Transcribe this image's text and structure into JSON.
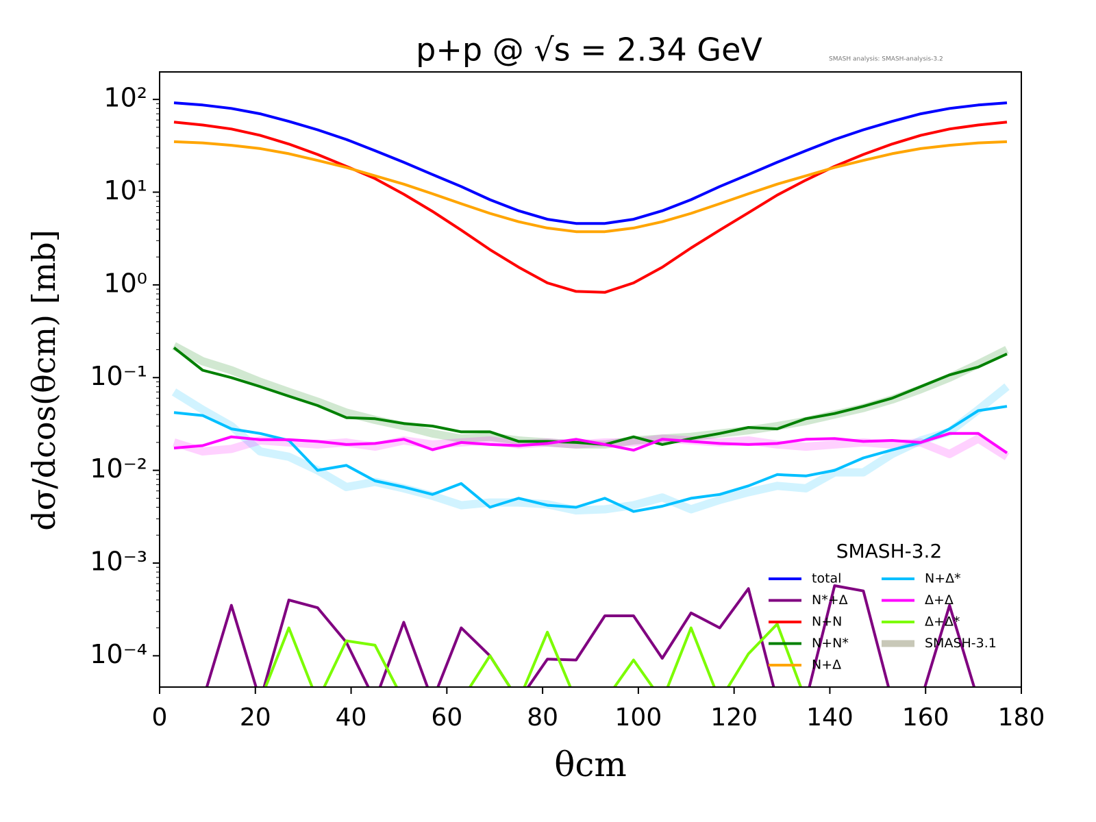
{
  "chart_data": {
    "type": "line",
    "title": "p+p @ √s = 2.34 GeV",
    "annotation": "SMASH analysis: SMASH-analysis-3.2",
    "xlabel": "θcm",
    "ylabel": "dσ/dcos(θcm) [mb]",
    "yscale": "log",
    "xlim": [
      0,
      180
    ],
    "xticks": [
      0,
      20,
      40,
      60,
      80,
      100,
      120,
      140,
      160,
      180
    ],
    "ylim": [
      4.6e-05,
      198
    ],
    "yticks": [
      {
        "value": 0.0001,
        "label": "10⁻⁴"
      },
      {
        "value": 0.001,
        "label": "10⁻³"
      },
      {
        "value": 0.01,
        "label": "10⁻²"
      },
      {
        "value": 0.1,
        "label": "10⁻¹"
      },
      {
        "value": 1,
        "label": "10⁰"
      },
      {
        "value": 10,
        "label": "10¹"
      },
      {
        "value": 100,
        "label": "10²"
      }
    ],
    "legend_title": "SMASH-3.2",
    "legend": "lower right",
    "x": [
      3,
      9,
      15,
      21,
      27,
      33,
      39,
      45,
      51,
      57,
      63,
      69,
      75,
      81,
      87,
      93,
      99,
      105,
      111,
      117,
      123,
      129,
      135,
      141,
      147,
      153,
      159,
      165,
      171,
      177
    ],
    "series": [
      {
        "name": "total",
        "color": "#0000ff",
        "values": [
          92,
          87,
          80,
          70,
          58,
          47,
          37,
          28,
          21,
          15.5,
          11.5,
          8.3,
          6.3,
          5.1,
          4.6,
          4.6,
          5.1,
          6.3,
          8.3,
          11.5,
          15.5,
          21,
          28,
          37,
          47,
          58,
          70,
          80,
          87,
          92
        ]
      },
      {
        "name": "N*+Δ",
        "color": "#800080",
        "values": [
          0,
          0,
          0.00035,
          0,
          0.0004,
          0.00033,
          0.00014,
          0,
          0.00023,
          0,
          0.0002,
          0.0001,
          0,
          9.2e-05,
          9e-05,
          0.00027,
          0.00027,
          9.4e-05,
          0.00029,
          0.0002,
          0.00053,
          0,
          0,
          0.00057,
          0.0005,
          0,
          0,
          0.00035,
          0,
          0
        ]
      },
      {
        "name": "N+N",
        "color": "#ff0000",
        "values": [
          57,
          53,
          48,
          41,
          33,
          25.5,
          19,
          14,
          9.5,
          6.2,
          3.9,
          2.4,
          1.55,
          1.05,
          0.85,
          0.83,
          1.05,
          1.55,
          2.5,
          3.9,
          6,
          9.3,
          13.5,
          19,
          25.5,
          33,
          41,
          48,
          53,
          57
        ]
      },
      {
        "name": "N+N*",
        "color": "#008000",
        "values": [
          0.21,
          0.12,
          0.1,
          0.08,
          0.063,
          0.05,
          0.037,
          0.036,
          0.032,
          0.03,
          0.026,
          0.026,
          0.0205,
          0.0205,
          0.02,
          0.019,
          0.023,
          0.019,
          0.022,
          0.025,
          0.029,
          0.028,
          0.036,
          0.041,
          0.049,
          0.06,
          0.08,
          0.107,
          0.13,
          0.18
        ]
      },
      {
        "name": "N+Δ",
        "color": "#ffa500",
        "values": [
          35,
          34,
          32,
          29.5,
          26,
          22,
          18.5,
          15,
          12.2,
          9.6,
          7.5,
          5.9,
          4.8,
          4.1,
          3.75,
          3.75,
          4.1,
          4.8,
          5.9,
          7.5,
          9.6,
          12.2,
          15,
          18.5,
          22,
          26,
          29.5,
          32,
          34,
          35
        ]
      },
      {
        "name": "N+Δ*",
        "color": "#00bfff",
        "values": [
          0.042,
          0.039,
          0.028,
          0.025,
          0.021,
          0.01,
          0.0113,
          0.0077,
          0.0066,
          0.0055,
          0.0072,
          0.004,
          0.005,
          0.0042,
          0.004,
          0.005,
          0.0036,
          0.0041,
          0.005,
          0.0055,
          0.0068,
          0.009,
          0.0087,
          0.01,
          0.0136,
          0.0166,
          0.02,
          0.028,
          0.044,
          0.049
        ]
      },
      {
        "name": "Δ+Δ",
        "color": "#ff00ff",
        "values": [
          0.0174,
          0.0185,
          0.023,
          0.0214,
          0.0214,
          0.0205,
          0.019,
          0.0195,
          0.0216,
          0.0167,
          0.02,
          0.019,
          0.0185,
          0.0195,
          0.0216,
          0.019,
          0.0165,
          0.0216,
          0.0205,
          0.0195,
          0.019,
          0.0195,
          0.0216,
          0.022,
          0.0205,
          0.021,
          0.02,
          0.025,
          0.025,
          0.0154
        ]
      },
      {
        "name": "Δ+Δ*",
        "color": "#7cfc00",
        "values": [
          0,
          0,
          0,
          0,
          0.0002,
          0,
          0.000145,
          0.00013,
          0,
          0,
          0,
          0.0001,
          0,
          0.00018,
          0,
          0,
          9e-05,
          0,
          0.0002,
          0,
          0.000105,
          0.00022,
          0,
          0,
          0,
          0,
          0,
          0,
          0,
          0
        ]
      }
    ],
    "reference": {
      "name": "SMASH-3.1",
      "color": "#c8c8b8",
      "series": [
        {
          "color": "#008000",
          "values": [
            0.22,
            0.15,
            0.12,
            0.09,
            0.07,
            0.055,
            0.042,
            0.035,
            0.03,
            0.025,
            0.022,
            0.023,
            0.021,
            0.02,
            0.019,
            0.019,
            0.021,
            0.022,
            0.023,
            0.025,
            0.027,
            0.03,
            0.034,
            0.04,
            0.047,
            0.058,
            0.075,
            0.1,
            0.14,
            0.2
          ]
        },
        {
          "color": "#00bfff",
          "values": [
            0.07,
            0.045,
            0.03,
            0.016,
            0.014,
            0.01,
            0.0066,
            0.0075,
            0.0064,
            0.0053,
            0.0042,
            0.0045,
            0.0045,
            0.0043,
            0.0037,
            0.0038,
            0.0042,
            0.0051,
            0.0038,
            0.0048,
            0.0058,
            0.0068,
            0.0064,
            0.0095,
            0.0095,
            0.015,
            0.021,
            0.026,
            0.045,
            0.08
          ]
        },
        {
          "color": "#ff00ff",
          "values": [
            0.02,
            0.016,
            0.017,
            0.021,
            0.02,
            0.019,
            0.02,
            0.018,
            0.021,
            0.019,
            0.02,
            0.021,
            0.019,
            0.02,
            0.019,
            0.02,
            0.02,
            0.022,
            0.021,
            0.02,
            0.021,
            0.019,
            0.018,
            0.019,
            0.02,
            0.019,
            0.02,
            0.015,
            0.022,
            0.014
          ]
        }
      ]
    }
  }
}
